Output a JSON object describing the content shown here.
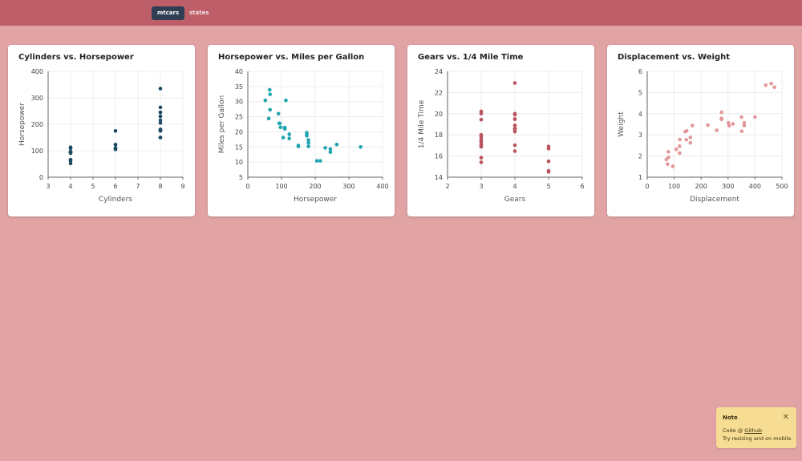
{
  "nav": {
    "tabs": [
      {
        "label": "mtcars",
        "active": true
      },
      {
        "label": "states",
        "active": false
      }
    ]
  },
  "colors": {
    "topbar": "#bd5e68",
    "page_background": "#e2a3a5",
    "active_tab": "#2f3e52",
    "note_background": "#f7dd93"
  },
  "note": {
    "title": "Note",
    "close_icon": "close-icon",
    "line1_prefix": "Code @ ",
    "line1_link": "Github",
    "line2": "Try resizing and on mobile."
  },
  "chart_data": [
    {
      "type": "scatter",
      "title": "Cylinders vs. Horsepower",
      "xlabel": "Cylinders",
      "ylabel": "Horsepower",
      "xlim": [
        3,
        9
      ],
      "ylim": [
        0,
        400
      ],
      "xticks": [
        3,
        4,
        5,
        6,
        7,
        8,
        9
      ],
      "yticks": [
        0,
        100,
        200,
        300,
        400
      ],
      "grid": true,
      "color": "#1b4a63",
      "points": [
        [
          4,
          52
        ],
        [
          4,
          62
        ],
        [
          4,
          65
        ],
        [
          4,
          66
        ],
        [
          4,
          91
        ],
        [
          4,
          93
        ],
        [
          4,
          95
        ],
        [
          4,
          97
        ],
        [
          4,
          109
        ],
        [
          4,
          113
        ],
        [
          6,
          105
        ],
        [
          6,
          110
        ],
        [
          6,
          110
        ],
        [
          6,
          123
        ],
        [
          6,
          123
        ],
        [
          6,
          175
        ],
        [
          8,
          150
        ],
        [
          8,
          150
        ],
        [
          8,
          175
        ],
        [
          8,
          175
        ],
        [
          8,
          180
        ],
        [
          8,
          180
        ],
        [
          8,
          180
        ],
        [
          8,
          205
        ],
        [
          8,
          215
        ],
        [
          8,
          230
        ],
        [
          8,
          245
        ],
        [
          8,
          245
        ],
        [
          8,
          264
        ],
        [
          8,
          335
        ]
      ]
    },
    {
      "type": "scatter",
      "title": "Horsepower vs. Miles per Gallon",
      "xlabel": "Horsepower",
      "ylabel": "Miles per Gallon",
      "xlim": [
        0,
        400
      ],
      "ylim": [
        5,
        40
      ],
      "xticks": [
        0,
        100,
        200,
        300,
        400
      ],
      "yticks": [
        5,
        10,
        15,
        20,
        25,
        30,
        35,
        40
      ],
      "grid": true,
      "color": "#1fa4b0",
      "points": [
        [
          110,
          21
        ],
        [
          110,
          21
        ],
        [
          93,
          22.8
        ],
        [
          110,
          21.4
        ],
        [
          175,
          18.7
        ],
        [
          105,
          18.1
        ],
        [
          245,
          14.3
        ],
        [
          62,
          24.4
        ],
        [
          95,
          22.8
        ],
        [
          123,
          19.2
        ],
        [
          123,
          17.8
        ],
        [
          180,
          16.4
        ],
        [
          180,
          17.3
        ],
        [
          180,
          15.2
        ],
        [
          205,
          10.4
        ],
        [
          215,
          10.4
        ],
        [
          230,
          14.7
        ],
        [
          66,
          32.4
        ],
        [
          52,
          30.4
        ],
        [
          65,
          33.9
        ],
        [
          97,
          21.5
        ],
        [
          150,
          15.5
        ],
        [
          150,
          15.2
        ],
        [
          245,
          13.3
        ],
        [
          175,
          19.2
        ],
        [
          66,
          27.3
        ],
        [
          91,
          26
        ],
        [
          113,
          30.4
        ],
        [
          264,
          15.8
        ],
        [
          175,
          19.7
        ],
        [
          335,
          15
        ],
        [
          109,
          21.4
        ]
      ]
    },
    {
      "type": "scatter",
      "title": "Gears vs. 1/4 Mile Time",
      "xlabel": "Gears",
      "ylabel": "1/4 Mile Time",
      "xlim": [
        2,
        6
      ],
      "ylim": [
        14,
        24
      ],
      "xticks": [
        2,
        3,
        4,
        5,
        6
      ],
      "yticks": [
        14,
        16,
        18,
        20,
        22,
        24
      ],
      "grid": true,
      "color": "#b9535e",
      "points": [
        [
          3,
          19.44
        ],
        [
          3,
          20.22
        ],
        [
          3,
          17.02
        ],
        [
          3,
          17.4
        ],
        [
          3,
          18
        ],
        [
          3,
          17.6
        ],
        [
          3,
          17.98
        ],
        [
          3,
          15.84
        ],
        [
          3,
          17.05
        ],
        [
          3,
          17.8
        ],
        [
          3,
          20.01
        ],
        [
          3,
          17.42
        ],
        [
          3,
          15.41
        ],
        [
          3,
          17.3
        ],
        [
          3,
          16.87
        ],
        [
          4,
          16.46
        ],
        [
          4,
          17.02
        ],
        [
          4,
          18.61
        ],
        [
          4,
          20
        ],
        [
          4,
          22.9
        ],
        [
          4,
          18.3
        ],
        [
          4,
          18.9
        ],
        [
          4,
          19.47
        ],
        [
          4,
          18.52
        ],
        [
          4,
          19.9
        ],
        [
          4,
          18.6
        ],
        [
          4,
          19.5
        ],
        [
          5,
          16.7
        ],
        [
          5,
          16.9
        ],
        [
          5,
          14.5
        ],
        [
          5,
          15.5
        ],
        [
          5,
          14.6
        ]
      ]
    },
    {
      "type": "scatter",
      "title": "Displacement vs. Weight",
      "xlabel": "Displacement",
      "ylabel": "Weight",
      "xlim": [
        0,
        500
      ],
      "ylim": [
        1,
        6
      ],
      "xticks": [
        0,
        100,
        200,
        300,
        400,
        500
      ],
      "yticks": [
        1,
        2,
        3,
        4,
        5,
        6
      ],
      "grid": true,
      "color": "#e4989a",
      "points": [
        [
          160,
          2.62
        ],
        [
          160,
          2.875
        ],
        [
          108,
          2.32
        ],
        [
          258,
          3.215
        ],
        [
          360,
          3.44
        ],
        [
          225,
          3.46
        ],
        [
          360,
          3.57
        ],
        [
          146.7,
          3.19
        ],
        [
          140.8,
          3.15
        ],
        [
          167.6,
          3.44
        ],
        [
          167.6,
          3.44
        ],
        [
          275.8,
          4.07
        ],
        [
          275.8,
          3.73
        ],
        [
          275.8,
          3.78
        ],
        [
          472,
          5.25
        ],
        [
          460,
          5.424
        ],
        [
          440,
          5.345
        ],
        [
          78.7,
          2.2
        ],
        [
          75.7,
          1.615
        ],
        [
          71.1,
          1.835
        ],
        [
          120.1,
          2.465
        ],
        [
          318,
          3.52
        ],
        [
          304,
          3.435
        ],
        [
          350,
          3.84
        ],
        [
          400,
          3.845
        ],
        [
          79,
          1.935
        ],
        [
          120.3,
          2.14
        ],
        [
          95.1,
          1.513
        ],
        [
          351,
          3.17
        ],
        [
          145,
          2.77
        ],
        [
          301,
          3.57
        ],
        [
          121,
          2.78
        ]
      ]
    }
  ]
}
